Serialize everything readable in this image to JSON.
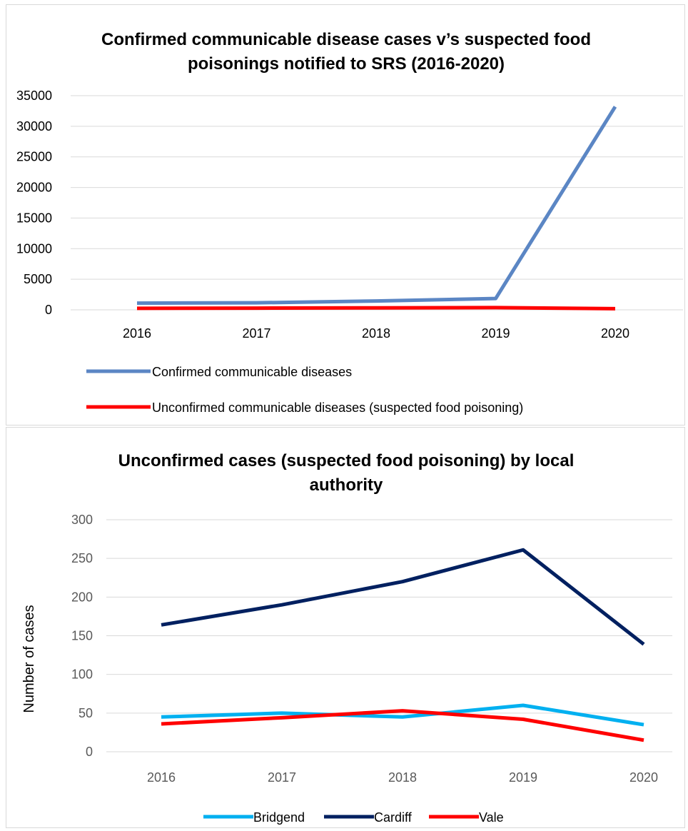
{
  "chart_data": [
    {
      "type": "line",
      "title_line1": "Confirmed communicable disease cases v’s suspected food",
      "title_line2": "poisonings notified to SRS (2016-2020)",
      "categories": [
        "2016",
        "2017",
        "2018",
        "2019",
        "2020"
      ],
      "ylim": [
        0,
        35000
      ],
      "yticks": [
        "0",
        "5000",
        "10000",
        "15000",
        "20000",
        "25000",
        "30000",
        "35000"
      ],
      "grid": true,
      "legend_position": "bottom",
      "series": [
        {
          "name": "Confirmed communicable diseases",
          "color": "#5b86c4",
          "values": [
            1100,
            1150,
            1450,
            1850,
            33200
          ]
        },
        {
          "name": "Unconfirmed communicable diseases (suspected food poisoning)",
          "color": "#ff0000",
          "values": [
            250,
            280,
            320,
            360,
            190
          ]
        }
      ]
    },
    {
      "type": "line",
      "title_line1": "Unconfirmed cases (suspected food poisoning) by local",
      "title_line2": "authority",
      "ylabel": "Number of cases",
      "categories": [
        "2016",
        "2017",
        "2018",
        "2019",
        "2020"
      ],
      "ylim": [
        0,
        300
      ],
      "yticks": [
        "0",
        "50",
        "100",
        "150",
        "200",
        "250",
        "300"
      ],
      "grid": true,
      "legend_position": "bottom",
      "series": [
        {
          "name": "Bridgend",
          "color": "#00b0f0",
          "values": [
            45,
            50,
            45,
            60,
            35
          ]
        },
        {
          "name": "Cardiff",
          "color": "#002060",
          "values": [
            164,
            190,
            220,
            261,
            139
          ]
        },
        {
          "name": "Vale",
          "color": "#ff0000",
          "values": [
            36,
            44,
            53,
            42,
            15
          ]
        }
      ]
    }
  ]
}
